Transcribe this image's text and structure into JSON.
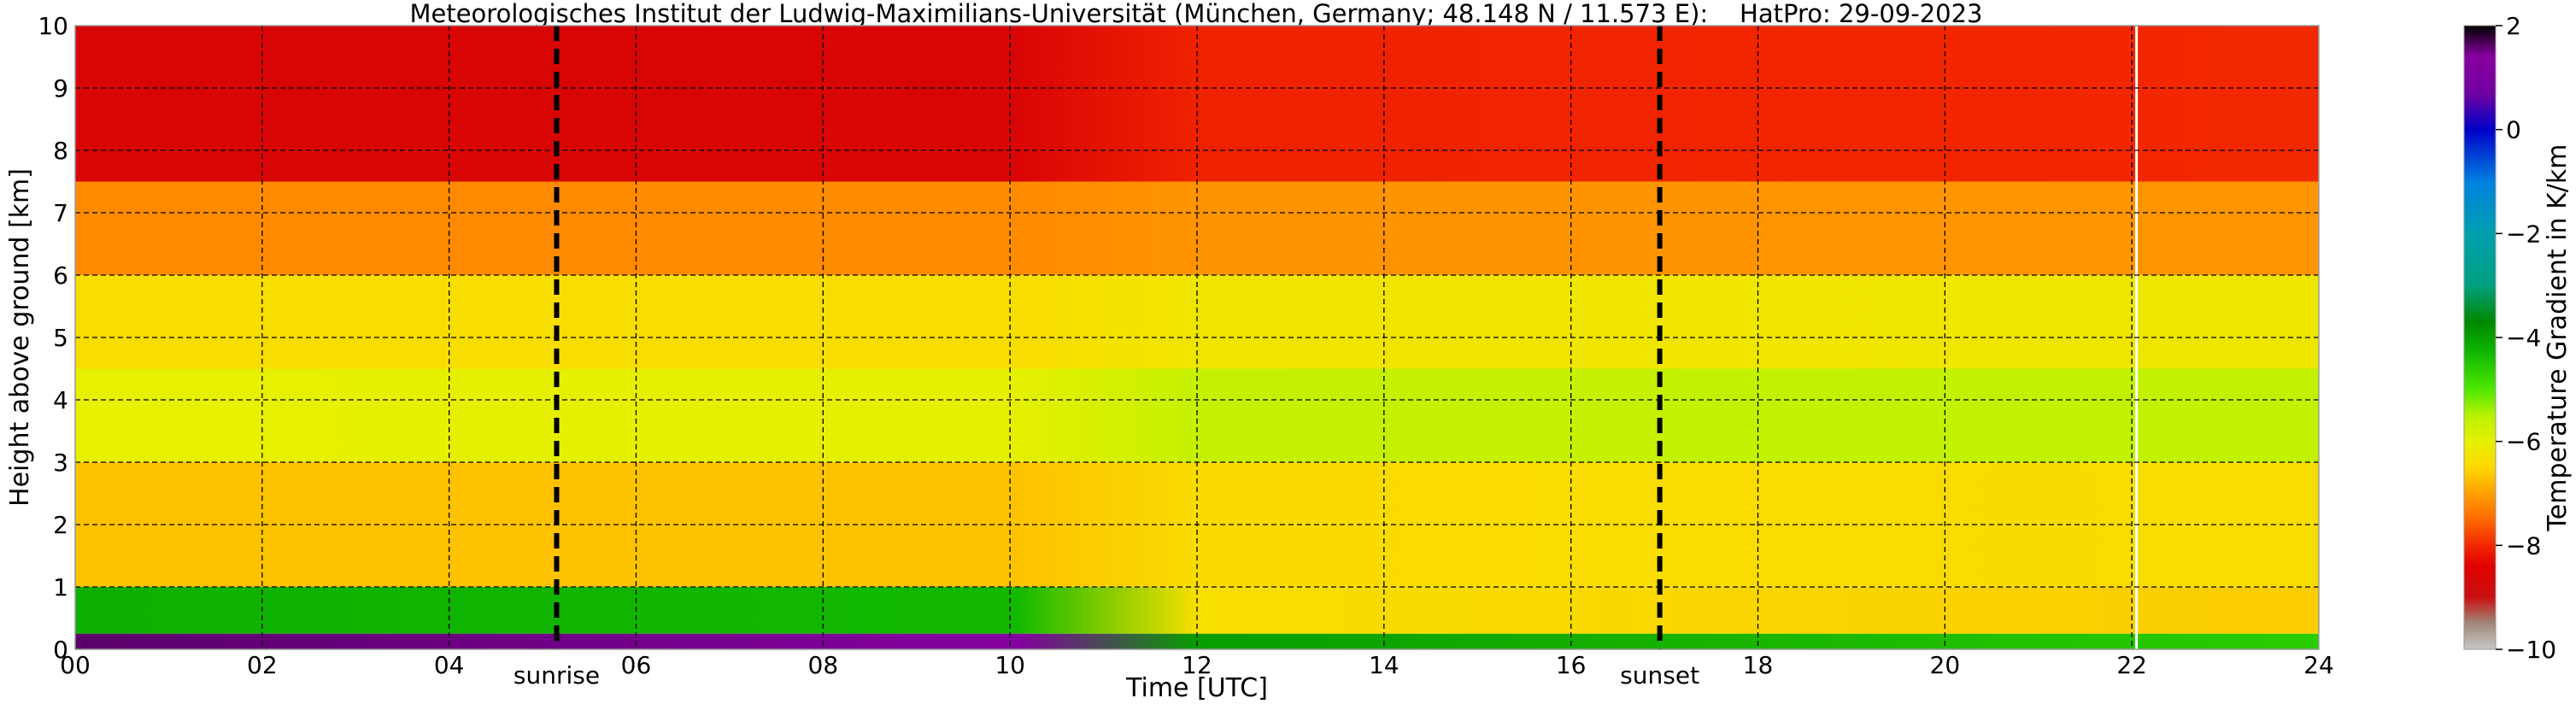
{
  "chart_data": {
    "type": "heatmap",
    "title": "Meteorologisches Institut der Ludwig-Maximilians-Universität (München, Germany; 48.148 N / 11.573 E):    HatPro: 29-09-2023",
    "xlabel": "Time [UTC]",
    "ylabel": "Height above ground [km]",
    "colorbar_label": "Temperature Gradient in K/km",
    "xlim": [
      0,
      24
    ],
    "ylim": [
      0,
      10
    ],
    "clim": [
      -10,
      2
    ],
    "x_ticks": [
      0,
      2,
      4,
      6,
      8,
      10,
      12,
      14,
      16,
      18,
      20,
      22,
      24
    ],
    "x_tick_labels": [
      "00",
      "02",
      "04",
      "06",
      "08",
      "10",
      "12",
      "14",
      "16",
      "18",
      "20",
      "22",
      "24"
    ],
    "y_ticks": [
      0,
      1,
      2,
      3,
      4,
      5,
      6,
      7,
      8,
      9,
      10
    ],
    "y_tick_labels": [
      "0",
      "1",
      "2",
      "3",
      "4",
      "5",
      "6",
      "7",
      "8",
      "9",
      "10"
    ],
    "colorbar_ticks": [
      2,
      0,
      -2,
      -4,
      -6,
      -8,
      -10
    ],
    "colorbar_tick_labels": [
      "2",
      "0",
      "−2",
      "−4",
      "−6",
      "−8",
      "−10"
    ],
    "grid": true,
    "markers": [
      {
        "label": "sunrise",
        "time": 5.15
      },
      {
        "label": "sunset",
        "time": 16.95
      }
    ],
    "data_gap_time": 22.05,
    "colormap": [
      {
        "value": -10.0,
        "color": "#c8c8c8"
      },
      {
        "value": -9.5,
        "color": "#a08878"
      },
      {
        "value": -9.0,
        "color": "#c81010"
      },
      {
        "value": -8.4,
        "color": "#e00000"
      },
      {
        "value": -8.0,
        "color": "#f22800"
      },
      {
        "value": -7.5,
        "color": "#ff6a00"
      },
      {
        "value": -7.0,
        "color": "#ffa000"
      },
      {
        "value": -6.5,
        "color": "#fdd800"
      },
      {
        "value": -6.0,
        "color": "#e6f000"
      },
      {
        "value": -5.5,
        "color": "#b8f200"
      },
      {
        "value": -5.0,
        "color": "#50e800"
      },
      {
        "value": -4.3,
        "color": "#10b800"
      },
      {
        "value": -3.7,
        "color": "#008800"
      },
      {
        "value": -3.0,
        "color": "#00a080"
      },
      {
        "value": -2.0,
        "color": "#00a0b0"
      },
      {
        "value": -1.0,
        "color": "#0080e0"
      },
      {
        "value": 0.0,
        "color": "#0000c8"
      },
      {
        "value": 0.7,
        "color": "#7000a0"
      },
      {
        "value": 1.4,
        "color": "#8800a0"
      },
      {
        "value": 2.0,
        "color": "#000000"
      }
    ],
    "profile_layers": [
      {
        "bottom": 7.5,
        "top": 10.0,
        "early": -8.6,
        "late": -8.0
      },
      {
        "bottom": 6.0,
        "top": 7.5,
        "early": -7.2,
        "late": -7.1
      },
      {
        "bottom": 4.5,
        "top": 6.0,
        "early": -6.4,
        "late": -6.2
      },
      {
        "bottom": 3.0,
        "top": 4.5,
        "early": -6.0,
        "late": -5.6
      },
      {
        "bottom": 1.0,
        "top": 3.0,
        "early": -6.7,
        "late": -6.4
      },
      {
        "bottom": 0.25,
        "top": 1.0,
        "early": -4.2,
        "late": -6.6
      },
      {
        "bottom": 0.0,
        "top": 0.25,
        "early": 1.6,
        "late": -4.6
      }
    ]
  }
}
